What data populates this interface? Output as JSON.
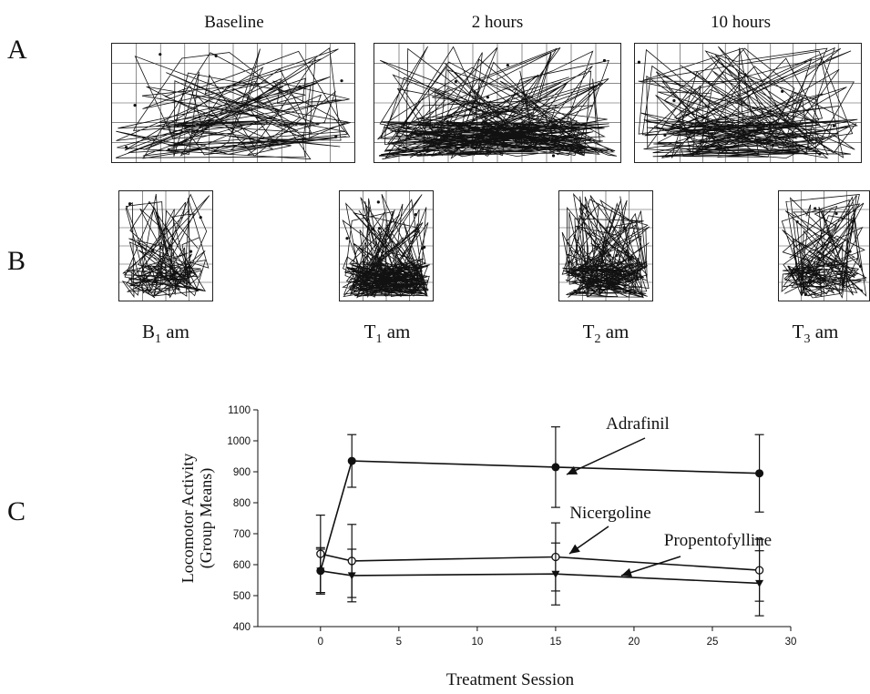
{
  "panels": {
    "a_letter": "A",
    "b_letter": "B",
    "c_letter": "C"
  },
  "panel_a": {
    "titles": [
      "Baseline",
      "2 hours",
      "10 hours"
    ],
    "density": [
      0.35,
      1.0,
      0.65
    ]
  },
  "panel_b": {
    "labels": [
      {
        "main": "B",
        "sub": "1",
        "suffix": " am"
      },
      {
        "main": "T",
        "sub": "1",
        "suffix": " am"
      },
      {
        "main": "T",
        "sub": "2",
        "suffix": " am"
      },
      {
        "main": "T",
        "sub": "3",
        "suffix": " am"
      }
    ],
    "density": [
      0.35,
      1.0,
      0.7,
      0.45
    ]
  },
  "chart_data": {
    "type": "line",
    "xlabel": "Treatment  Session",
    "ylabel_line1": "Locomotor Activity",
    "ylabel_line2": "(Group Means)",
    "xlim": [
      -4,
      30
    ],
    "ylim": [
      400,
      1100
    ],
    "xticks": [
      0,
      5,
      10,
      15,
      20,
      25,
      30
    ],
    "yticks": [
      400,
      500,
      600,
      700,
      800,
      900,
      1000,
      1100
    ],
    "series": [
      {
        "name": "Adrafinil",
        "marker": "filled-circle",
        "x": [
          0,
          2,
          15,
          28
        ],
        "y": [
          580,
          935,
          915,
          895
        ],
        "err": [
          75,
          85,
          130,
          125
        ]
      },
      {
        "name": "Nicergoline",
        "marker": "open-circle",
        "x": [
          0,
          2,
          15,
          28
        ],
        "y": [
          635,
          612,
          625,
          582
        ],
        "err": [
          125,
          118,
          110,
          100
        ]
      },
      {
        "name": "Propentofylline",
        "marker": "filled-triangle",
        "x": [
          0,
          2,
          15,
          28
        ],
        "y": [
          580,
          565,
          570,
          540
        ],
        "err": [
          70,
          85,
          100,
          105
        ]
      }
    ]
  }
}
